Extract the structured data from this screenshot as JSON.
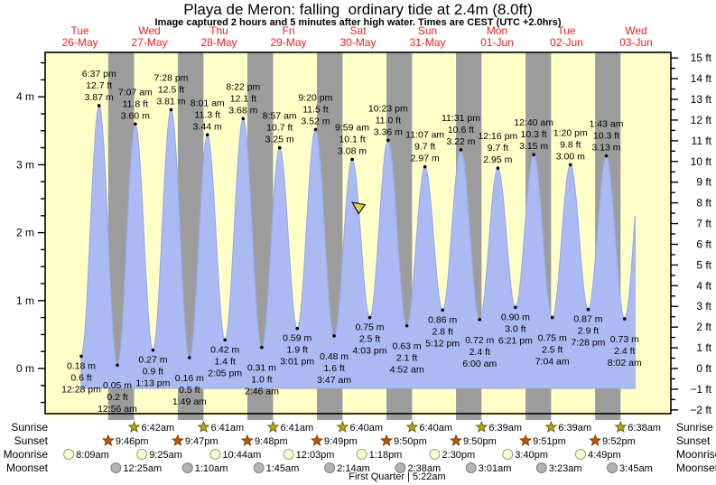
{
  "header": {
    "title": "Playa de Meron: falling  ordinary tide at 2.4m (8.0ft)",
    "subtitle": "Image captured 2 hours and 5 minutes after high water. Times are CEST (UTC +2.0hrs)"
  },
  "colors": {
    "band_day": "#ffffc8",
    "band_night": "#9c9c9c",
    "tide_fill": "#abbaf2",
    "tide_edge": "#96a7e8",
    "day_label": "#ee2222",
    "axis_text": "#000000",
    "marker_fill": "#dcd94a",
    "sunrise_star": "#b5a51e",
    "sunrise_star_outline": "#6b6410",
    "sunset_star": "#c05a00",
    "sunset_star_outline": "#7a3900",
    "moonrise_circle": "#ffffcc",
    "moonrise_circle_outline": "#999999",
    "moonset_circle": "#b3b3b3",
    "moonset_circle_outline": "#808080"
  },
  "chart_data": {
    "type": "area",
    "title": "Playa de Meron: falling  ordinary tide at 2.4m (8.0ft)",
    "subtitle": "Image captured 2 hours and 5 minutes after high water. Times are CEST (UTC +2.0hrs)",
    "x_axis": {
      "days": [
        {
          "name": "Tue",
          "date": "26-May"
        },
        {
          "name": "Wed",
          "date": "27-May"
        },
        {
          "name": "Thu",
          "date": "28-May"
        },
        {
          "name": "Fri",
          "date": "29-May"
        },
        {
          "name": "Sat",
          "date": "30-May"
        },
        {
          "name": "Sun",
          "date": "31-May"
        },
        {
          "name": "Mon",
          "date": "01-Jun"
        },
        {
          "name": "Tue",
          "date": "02-Jun"
        },
        {
          "name": "Wed",
          "date": "03-Jun"
        }
      ],
      "hours_total": 216
    },
    "y_axis_left": {
      "unit": "m",
      "tick_labels": [
        "0 m",
        "1 m",
        "2 m",
        "3 m",
        "4 m"
      ],
      "minor_step_m": 0.25
    },
    "y_axis_right": {
      "unit": "ft",
      "tick_labels": [
        "-2 ft",
        "-1 ft",
        "0 ft",
        "1 ft",
        "2 ft",
        "3 ft",
        "4 ft",
        "5 ft",
        "6 ft",
        "7 ft",
        "8 ft",
        "9 ft",
        "10 ft",
        "11 ft",
        "12 ft",
        "13 ft",
        "14 ft",
        "15 ft"
      ],
      "minor_step_ft": 0.5
    },
    "tide_extremes": [
      {
        "day": 0,
        "time": "12:28 pm",
        "type": "low",
        "m": 0.18,
        "ft": 0.6
      },
      {
        "day": 0,
        "time": "6:37 pm",
        "type": "high",
        "m": 3.87,
        "ft": 12.7
      },
      {
        "day": 1,
        "time": "12:56 am",
        "type": "low",
        "m": 0.05,
        "ft": 0.2
      },
      {
        "day": 1,
        "time": "7:07 am",
        "type": "high",
        "m": 3.6,
        "ft": 11.8
      },
      {
        "day": 1,
        "time": "1:13 pm",
        "type": "low",
        "m": 0.27,
        "ft": 0.9
      },
      {
        "day": 1,
        "time": "7:28 pm",
        "type": "high",
        "m": 3.81,
        "ft": 12.5
      },
      {
        "day": 2,
        "time": "1:49 am",
        "type": "low",
        "m": 0.16,
        "ft": 0.5
      },
      {
        "day": 2,
        "time": "8:01 am",
        "type": "high",
        "m": 3.44,
        "ft": 11.3
      },
      {
        "day": 2,
        "time": "2:05 pm",
        "type": "low",
        "m": 0.42,
        "ft": 1.4
      },
      {
        "day": 2,
        "time": "8:22 pm",
        "type": "high",
        "m": 3.68,
        "ft": 12.1
      },
      {
        "day": 3,
        "time": "2:46 am",
        "type": "low",
        "m": 0.31,
        "ft": 1.0
      },
      {
        "day": 3,
        "time": "8:57 am",
        "type": "high",
        "m": 3.25,
        "ft": 10.7
      },
      {
        "day": 3,
        "time": "3:01 pm",
        "type": "low",
        "m": 0.59,
        "ft": 1.9
      },
      {
        "day": 3,
        "time": "9:20 pm",
        "type": "high",
        "m": 3.52,
        "ft": 11.5
      },
      {
        "day": 4,
        "time": "3:47 am",
        "type": "low",
        "m": 0.48,
        "ft": 1.6
      },
      {
        "day": 4,
        "time": "9:59 am",
        "type": "high",
        "m": 3.08,
        "ft": 10.1
      },
      {
        "day": 4,
        "time": "4:03 pm",
        "type": "low",
        "m": 0.75,
        "ft": 2.5
      },
      {
        "day": 4,
        "time": "10:23 pm",
        "type": "high",
        "m": 3.36,
        "ft": 11.0
      },
      {
        "day": 5,
        "time": "4:52 am",
        "type": "low",
        "m": 0.63,
        "ft": 2.1
      },
      {
        "day": 5,
        "time": "11:07 am",
        "type": "high",
        "m": 2.97,
        "ft": 9.7
      },
      {
        "day": 5,
        "time": "5:12 pm",
        "type": "low",
        "m": 0.86,
        "ft": 2.8
      },
      {
        "day": 5,
        "time": "11:31 pm",
        "type": "high",
        "m": 3.22,
        "ft": 10.6
      },
      {
        "day": 6,
        "time": "6:00 am",
        "type": "low",
        "m": 0.72,
        "ft": 2.4
      },
      {
        "day": 6,
        "time": "12:16 pm",
        "type": "high",
        "m": 2.95,
        "ft": 9.7
      },
      {
        "day": 6,
        "time": "6:21 pm",
        "type": "low",
        "m": 0.9,
        "ft": 3.0
      },
      {
        "day": 7,
        "time": "12:40 am",
        "type": "high",
        "m": 3.15,
        "ft": 10.3
      },
      {
        "day": 7,
        "time": "7:04 am",
        "type": "low",
        "m": 0.75,
        "ft": 2.5
      },
      {
        "day": 7,
        "time": "1:20 pm",
        "type": "high",
        "m": 3.0,
        "ft": 9.8
      },
      {
        "day": 7,
        "time": "7:28 pm",
        "type": "low",
        "m": 0.87,
        "ft": 2.9
      },
      {
        "day": 8,
        "time": "1:43 am",
        "type": "high",
        "m": 3.13,
        "ft": 10.3
      },
      {
        "day": 8,
        "time": "8:02 am",
        "type": "low",
        "m": 0.73,
        "ft": 2.4
      }
    ],
    "capture_marker": {
      "day": 4,
      "time": "12:04 pm"
    }
  },
  "astro": {
    "rows": [
      {
        "label": "Sunrise",
        "icon": "sunrise-star-icon",
        "shape": "star",
        "events": [
          {
            "day": 1,
            "time": "6:42am"
          },
          {
            "day": 2,
            "time": "6:41am"
          },
          {
            "day": 3,
            "time": "6:41am"
          },
          {
            "day": 4,
            "time": "6:40am"
          },
          {
            "day": 5,
            "time": "6:40am"
          },
          {
            "day": 6,
            "time": "6:39am"
          },
          {
            "day": 7,
            "time": "6:39am"
          },
          {
            "day": 8,
            "time": "6:38am"
          }
        ]
      },
      {
        "label": "Sunset",
        "icon": "sunset-star-icon",
        "shape": "star",
        "events": [
          {
            "day": 0,
            "time": "9:46pm"
          },
          {
            "day": 1,
            "time": "9:47pm"
          },
          {
            "day": 2,
            "time": "9:48pm"
          },
          {
            "day": 3,
            "time": "9:49pm"
          },
          {
            "day": 4,
            "time": "9:50pm"
          },
          {
            "day": 5,
            "time": "9:50pm"
          },
          {
            "day": 6,
            "time": "9:51pm"
          },
          {
            "day": 7,
            "time": "9:52pm"
          }
        ]
      },
      {
        "label": "Moonrise",
        "icon": "moonrise-circle-icon",
        "shape": "circle",
        "events": [
          {
            "day": 0,
            "time": "8:09am"
          },
          {
            "day": 1,
            "time": "9:25am"
          },
          {
            "day": 2,
            "time": "10:44am"
          },
          {
            "day": 3,
            "time": "12:03pm"
          },
          {
            "day": 4,
            "time": "1:18pm"
          },
          {
            "day": 5,
            "time": "2:30pm"
          },
          {
            "day": 6,
            "time": "3:40pm"
          },
          {
            "day": 7,
            "time": "4:49pm"
          }
        ]
      },
      {
        "label": "Moonset",
        "icon": "moonset-circle-icon",
        "shape": "circle",
        "events": [
          {
            "day": 1,
            "time": "12:25am"
          },
          {
            "day": 2,
            "time": "1:10am"
          },
          {
            "day": 3,
            "time": "1:45am"
          },
          {
            "day": 4,
            "time": "2:14am"
          },
          {
            "day": 5,
            "time": "2:38am"
          },
          {
            "day": 6,
            "time": "3:01am"
          },
          {
            "day": 7,
            "time": "3:23am"
          },
          {
            "day": 8,
            "time": "3:45am"
          }
        ]
      }
    ],
    "moon_phase": "First Quarter | 5:22am"
  }
}
